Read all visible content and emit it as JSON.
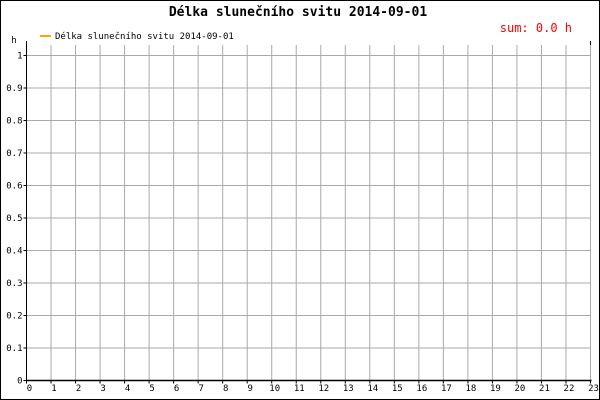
{
  "chart_data": {
    "type": "bar",
    "title": "Délka slunečního svitu 2014-09-01",
    "ylabel": "h",
    "xlabel": "",
    "annotation": "sum: 0.0 h",
    "legend": {
      "entries": [
        "Délka slunečního svitu 2014-09-01"
      ],
      "placement": "top-left"
    },
    "categories": [
      "0",
      "1",
      "2",
      "3",
      "4",
      "5",
      "6",
      "7",
      "8",
      "9",
      "10",
      "11",
      "12",
      "13",
      "14",
      "15",
      "16",
      "17",
      "18",
      "19",
      "20",
      "21",
      "22",
      "23"
    ],
    "values": [
      0,
      0,
      0,
      0,
      0,
      0,
      0,
      0,
      0,
      0,
      0,
      0,
      0,
      0,
      0,
      0,
      0,
      0,
      0,
      0,
      0,
      0,
      0,
      0
    ],
    "xlim": [
      0,
      23
    ],
    "ylim": [
      0,
      1
    ],
    "yticks": [
      "0",
      "0.1",
      "0.2",
      "0.3",
      "0.4",
      "0.5",
      "0.6",
      "0.7",
      "0.8",
      "0.9",
      "1"
    ],
    "grid": true,
    "colors": {
      "series": "#ffa500",
      "annotation": "#ff0000",
      "grid": "#aaaaaa",
      "axis": "#000000"
    }
  }
}
